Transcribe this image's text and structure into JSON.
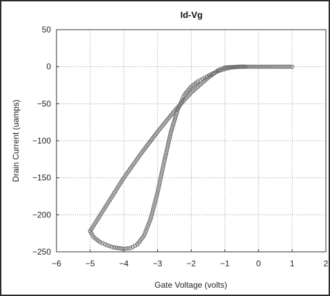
{
  "chart_data": {
    "type": "scatter",
    "title": "Id-Vg",
    "xlabel": "Gate Voltage (volts)",
    "ylabel": "Drain Current (uamps)",
    "xlim": [
      -6,
      2
    ],
    "ylim": [
      -250,
      50
    ],
    "xticks": [
      -6,
      -5,
      -4,
      -3,
      -2,
      -1,
      0,
      1,
      2
    ],
    "yticks": [
      50,
      0,
      -50,
      -100,
      -150,
      -200,
      -250
    ],
    "grid": true,
    "legend": "none",
    "marker": "open-circle",
    "marker_color": "#6b6b6b",
    "series": [
      {
        "points": [
          [
            1,
            0
          ],
          [
            0.5,
            0
          ],
          [
            0,
            0
          ],
          [
            -0.5,
            0
          ],
          [
            -1,
            -1
          ],
          [
            -1.2,
            -5
          ],
          [
            -1.5,
            -15
          ],
          [
            -2,
            -35
          ],
          [
            -2.5,
            -60
          ],
          [
            -3,
            -88
          ],
          [
            -3.5,
            -118
          ],
          [
            -4,
            -150
          ],
          [
            -4.5,
            -186
          ],
          [
            -5,
            -222
          ]
        ]
      },
      {
        "points": [
          [
            -5,
            -222
          ],
          [
            -4.9,
            -230
          ],
          [
            -4.7,
            -237
          ],
          [
            -4.5,
            -241
          ],
          [
            -4.3,
            -244
          ],
          [
            -4,
            -246
          ],
          [
            -3.8,
            -245
          ],
          [
            -3.6,
            -240
          ],
          [
            -3.4,
            -228
          ],
          [
            -3.2,
            -205
          ],
          [
            -3.0,
            -170
          ],
          [
            -2.8,
            -128
          ],
          [
            -2.6,
            -88
          ],
          [
            -2.4,
            -58
          ],
          [
            -2.2,
            -38
          ],
          [
            -2.0,
            -27
          ],
          [
            -1.8,
            -20
          ],
          [
            -1.6,
            -15
          ],
          [
            -1.4,
            -10
          ],
          [
            -1.2,
            -6
          ],
          [
            -1.0,
            -3
          ],
          [
            -0.8,
            -1
          ],
          [
            -0.6,
            0
          ],
          [
            -0.4,
            0
          ]
        ]
      }
    ]
  }
}
